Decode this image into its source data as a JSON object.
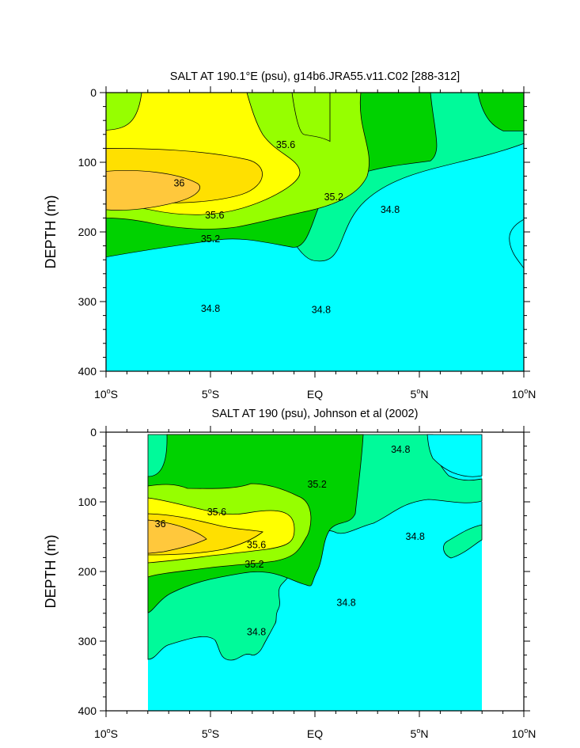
{
  "chart_data": [
    {
      "type": "contour",
      "title": "SALT AT 190.1°E (psu), g14b6.JRA55.v11.C02 [288-312]",
      "ylabel": "DEPTH (m)",
      "xlim": [
        -10,
        10
      ],
      "ylim": [
        0,
        400
      ],
      "y_inverted": true,
      "xticks": [
        -10,
        -5,
        0,
        5,
        10
      ],
      "xtick_labels": [
        "10°S",
        "5°S",
        "EQ",
        "5°N",
        "10°N"
      ],
      "yticks": [
        0,
        100,
        200,
        300,
        400
      ],
      "contour_levels": [
        34.8,
        35.0,
        35.2,
        35.4,
        35.6,
        35.8,
        36.0
      ],
      "fill_colors": [
        "#00ffff",
        "#00fa9a",
        "#00d200",
        "#96ff00",
        "#ffff00",
        "#ffe000",
        "#ffc83c"
      ],
      "contour_labels": [
        {
          "text": "35.6",
          "x": -1.4,
          "y": 75
        },
        {
          "text": "36",
          "x": -6.5,
          "y": 130
        },
        {
          "text": "35.2",
          "x": 0.9,
          "y": 150
        },
        {
          "text": "34.8",
          "x": 3.6,
          "y": 168
        },
        {
          "text": "35.6",
          "x": -4.8,
          "y": 176
        },
        {
          "text": "35.2",
          "x": -5.0,
          "y": 210
        },
        {
          "text": "34.8",
          "x": -5.0,
          "y": 310
        },
        {
          "text": "34.8",
          "x": 0.3,
          "y": 312
        }
      ]
    },
    {
      "type": "contour",
      "title": "SALT AT 190 (psu), Johnson et al (2002)",
      "ylabel": "DEPTH (m)",
      "xlim": [
        -10,
        10
      ],
      "ylim": [
        0,
        400
      ],
      "y_inverted": true,
      "data_xlim": [
        -8,
        8
      ],
      "xticks": [
        -10,
        -5,
        0,
        5,
        10
      ],
      "xtick_labels": [
        "10°S",
        "5°S",
        "EQ",
        "5°N",
        "10°N"
      ],
      "yticks": [
        0,
        100,
        200,
        300,
        400
      ],
      "contour_levels": [
        34.8,
        35.0,
        35.2,
        35.4,
        35.6,
        35.8,
        36.0
      ],
      "fill_colors": [
        "#00ffff",
        "#00fa9a",
        "#00d200",
        "#96ff00",
        "#ffff00",
        "#ffe000",
        "#ffc83c"
      ],
      "contour_labels": [
        {
          "text": "34.8",
          "x": 4.1,
          "y": 25
        },
        {
          "text": "35.2",
          "x": 0.1,
          "y": 75
        },
        {
          "text": "35.6",
          "x": -4.7,
          "y": 115
        },
        {
          "text": "36",
          "x": -7.4,
          "y": 132
        },
        {
          "text": "34.8",
          "x": 4.8,
          "y": 150
        },
        {
          "text": "35.6",
          "x": -2.8,
          "y": 162
        },
        {
          "text": "35.2",
          "x": -2.9,
          "y": 190
        },
        {
          "text": "34.8",
          "x": 1.5,
          "y": 245
        },
        {
          "text": "34.8",
          "x": -2.8,
          "y": 287
        }
      ]
    }
  ]
}
